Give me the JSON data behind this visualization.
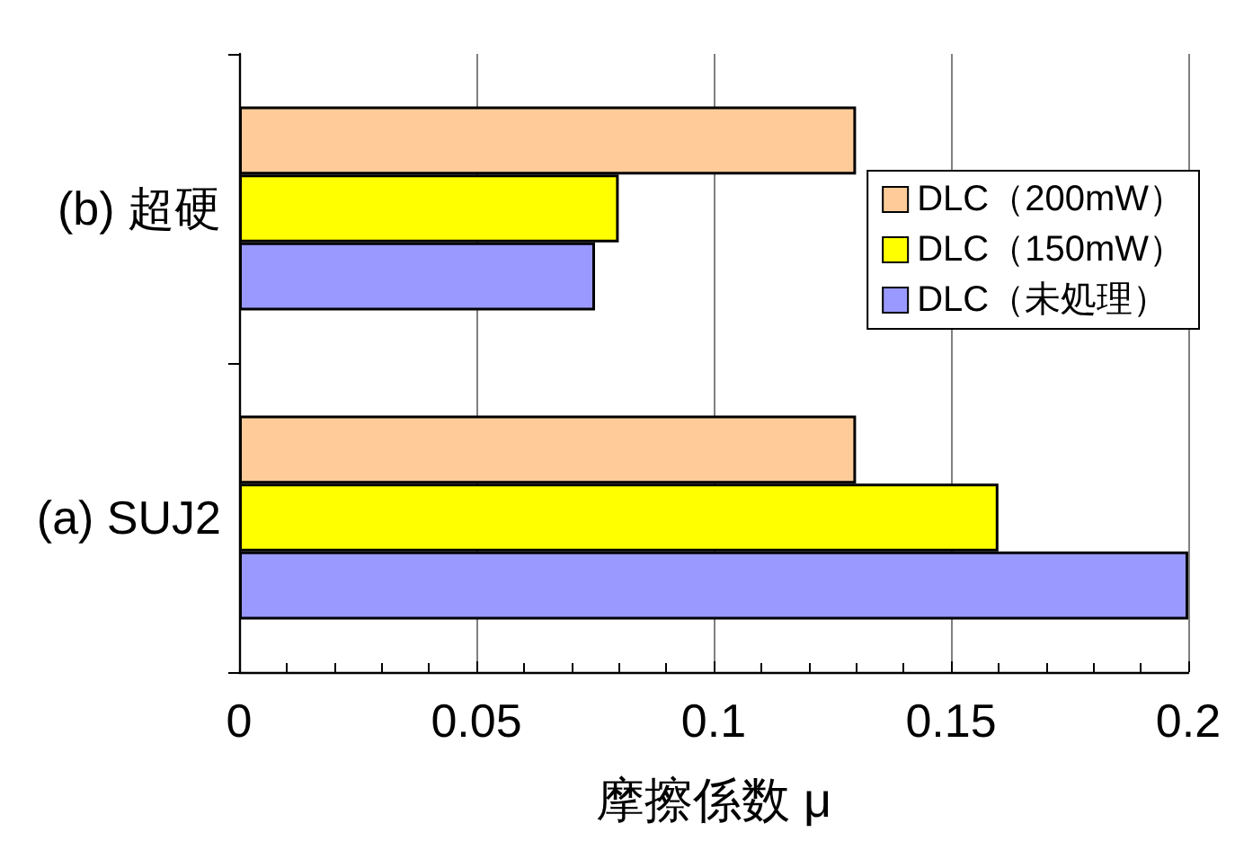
{
  "chart_data": {
    "type": "bar",
    "orientation": "horizontal",
    "xlabel": "摩擦係数 μ",
    "categories": [
      "(b) 超硬",
      "(a) SUJ2"
    ],
    "series": [
      {
        "name": "DLC（200mW）",
        "color": "#ffcc99",
        "values": [
          0.13,
          0.13
        ]
      },
      {
        "name": "DLC（150mW）",
        "color": "#ffff00",
        "values": [
          0.08,
          0.16
        ]
      },
      {
        "name": "DLC（未処理）",
        "color": "#9999ff",
        "values": [
          0.075,
          0.2
        ]
      }
    ],
    "xlim": [
      0,
      0.2
    ],
    "xticks": [
      0,
      0.05,
      0.1,
      0.15,
      0.2
    ],
    "grid": "x",
    "legend": "right"
  }
}
